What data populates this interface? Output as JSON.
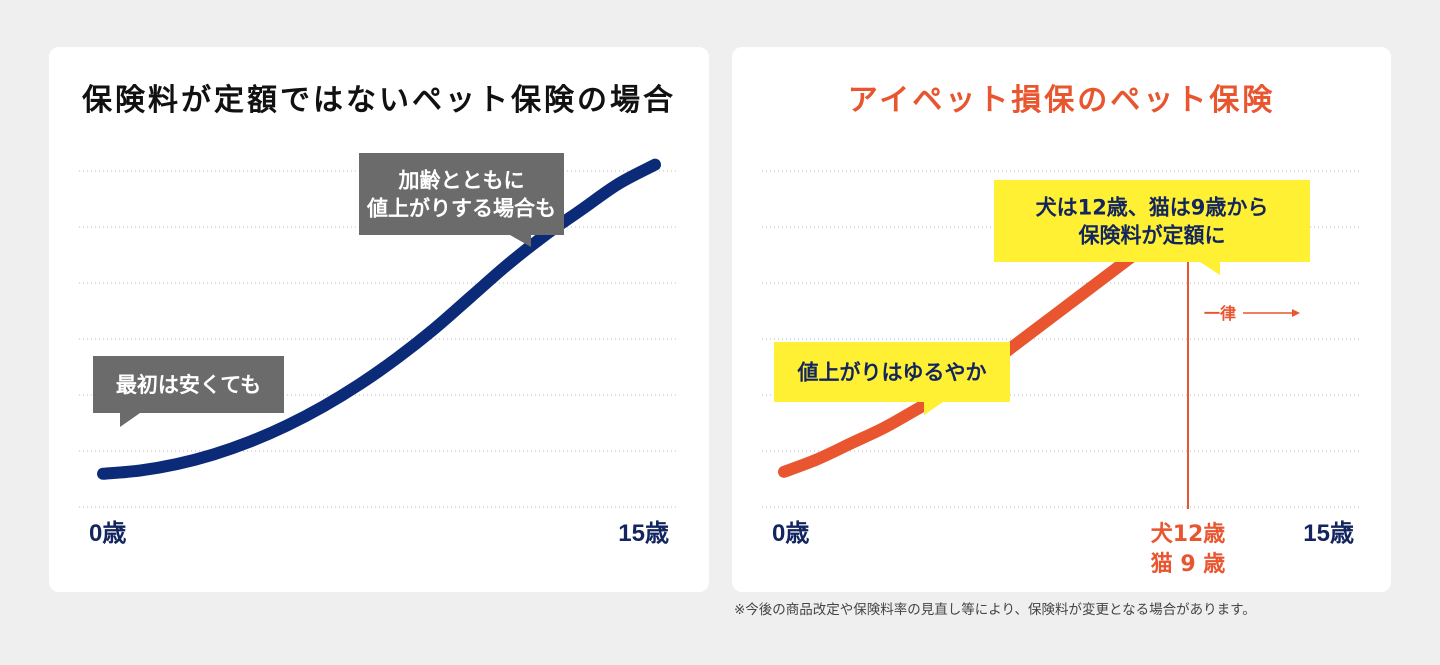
{
  "colors": {
    "background": "#efefef",
    "panel": "#ffffff",
    "navy": "#0b2a78",
    "orange": "#e8552f",
    "callout_gray": "#6b6b6b",
    "callout_yellow": "#fff033",
    "gridline": "#bbbbbb",
    "label_navy": "#13255f"
  },
  "footnote": "※今後の商品改定や保険料率の見直し等により、保険料が変更となる場合があります。",
  "chart_data": [
    {
      "type": "line",
      "title": "保険料が定額ではないペット保険の場合",
      "x_labels": {
        "start": "0歳",
        "end": "15歳"
      },
      "xlim": [
        0,
        15
      ],
      "ylim": [
        0,
        100
      ],
      "yaxis_ticks_visible": false,
      "grid": "horizontal dotted",
      "series": [
        {
          "color": "#0b2a78",
          "x": [
            0,
            1,
            2,
            3,
            4,
            5,
            6,
            7,
            8,
            9,
            10,
            11,
            12,
            13,
            14,
            15
          ],
          "y": [
            1,
            2,
            4,
            7,
            11,
            16,
            22,
            29,
            37,
            46,
            56,
            66,
            75,
            83,
            91,
            97
          ]
        }
      ],
      "callouts": [
        {
          "lines": [
            "最初は安くても"
          ],
          "style": "gray"
        },
        {
          "lines": [
            "加齢とともに",
            "値上がりする場合も"
          ],
          "style": "gray"
        }
      ]
    },
    {
      "type": "line",
      "title": "アイペット損保のペット保険",
      "x_labels": {
        "start": "0歳",
        "end": "15歳"
      },
      "xlim": [
        0,
        15
      ],
      "ylim": [
        0,
        100
      ],
      "yaxis_ticks_visible": false,
      "grid": "horizontal dotted",
      "series": [
        {
          "color": "#e8552f",
          "x": [
            0,
            1,
            2,
            3,
            4,
            5,
            6,
            7,
            8,
            9,
            10,
            11,
            12,
            13,
            14,
            15
          ],
          "y": [
            1,
            5,
            10,
            15,
            21,
            27,
            34,
            42,
            50,
            58,
            66,
            74,
            82,
            82,
            82,
            82
          ]
        }
      ],
      "marker": {
        "x": 12,
        "label_lines": [
          "犬12歳",
          "猫 9 歳"
        ],
        "flat_label": "一律"
      },
      "callouts": [
        {
          "lines": [
            "値上がりはゆるやか"
          ],
          "style": "yellow"
        },
        {
          "lines": [
            "犬は12歳、猫は9歳から",
            "保険料が定額に"
          ],
          "style": "yellow"
        }
      ]
    }
  ]
}
